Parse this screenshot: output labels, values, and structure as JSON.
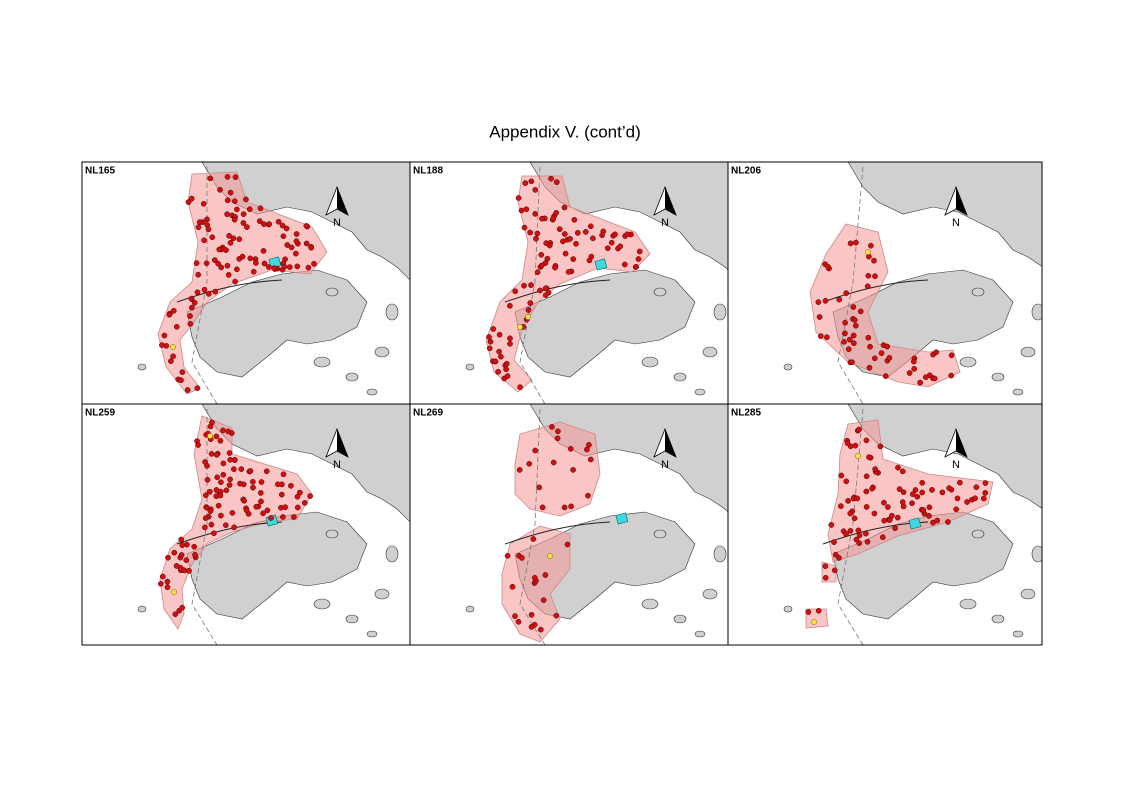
{
  "title": "Appendix V.  (cont’d)",
  "panels": [
    {
      "label": "NL165",
      "north": "N"
    },
    {
      "label": "NL188",
      "north": "N"
    },
    {
      "label": "NL206",
      "north": "N"
    },
    {
      "label": "NL259",
      "north": "N"
    },
    {
      "label": "NL269",
      "north": "N"
    },
    {
      "label": "NL285",
      "north": "N"
    }
  ]
}
